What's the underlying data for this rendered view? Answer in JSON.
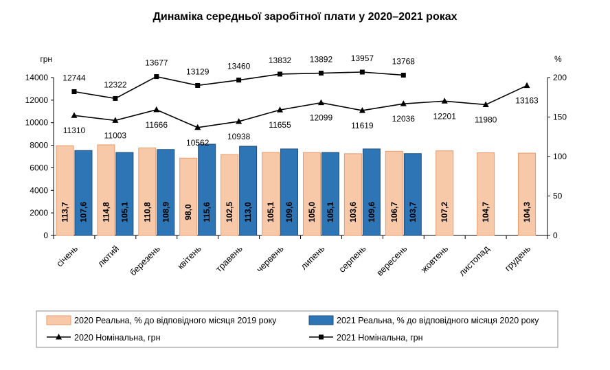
{
  "chart_data": {
    "type": "bar+line",
    "title": "Динаміка середньої заробітної плати у 2020–2021 роках",
    "left_axis": {
      "unit": "грн",
      "ylim": [
        0,
        14000
      ],
      "ticks": [
        "0",
        "2000",
        "4000",
        "6000",
        "8000",
        "10000",
        "12000",
        "14000"
      ]
    },
    "right_axis": {
      "unit": "%",
      "ylim": [
        0,
        200
      ],
      "ticks": [
        "0",
        "50",
        "100",
        "150",
        "200"
      ]
    },
    "categories": [
      "січень",
      "лютий",
      "березень",
      "квітень",
      "травень",
      "червень",
      "липень",
      "серпень",
      "вересень",
      "жовтень",
      "листопад",
      "грудень"
    ],
    "series": [
      {
        "name": "2020 Реальна, % до відповідного місяця 2019 року",
        "kind": "bar",
        "axis": "right",
        "color": "#F8C9A9",
        "stroke": "#E89A6A",
        "values": [
          113.7,
          114.8,
          110.8,
          98.0,
          102.5,
          105.1,
          105.0,
          103.6,
          106.7,
          107.2,
          104.7,
          104.3
        ],
        "labels": [
          "113,7",
          "114,8",
          "110,8",
          "98,0",
          "102,5",
          "105,1",
          "105,0",
          "103,6",
          "106,7",
          "107,2",
          "104,7",
          "104,3"
        ]
      },
      {
        "name": "2021 Реальна, % до відповідного місяця 2020 року",
        "kind": "bar",
        "axis": "right",
        "color": "#2E75B6",
        "stroke": "#1F4E79",
        "values": [
          107.6,
          105.1,
          108.9,
          115.6,
          113.0,
          109.6,
          105.1,
          109.6,
          103.7,
          null,
          null,
          null
        ],
        "labels": [
          "107,6",
          "105,1",
          "108,9",
          "115,6",
          "113,0",
          "109,6",
          "105,1",
          "109,6",
          "103,7",
          null,
          null,
          null
        ]
      },
      {
        "name": "2020 Номінальна, грн",
        "kind": "line",
        "axis": "right",
        "marker": "triangle",
        "color": "#000000",
        "values": [
          11310,
          11003,
          11666,
          10562,
          10938,
          11655,
          12099,
          11619,
          12036,
          12201,
          11980,
          13163
        ],
        "labels": [
          "11310",
          "11003",
          "11666",
          "10562",
          "10938",
          "11655",
          "12099",
          "11619",
          "12036",
          "12201",
          "11980",
          "13163"
        ]
      },
      {
        "name": "2021 Номінальна, грн",
        "kind": "line",
        "axis": "right",
        "marker": "square",
        "color": "#000000",
        "values": [
          12744,
          12322,
          13677,
          13129,
          13460,
          13832,
          13892,
          13957,
          13768,
          null,
          null,
          null
        ],
        "labels": [
          "12744",
          "12322",
          "13677",
          "13129",
          "13460",
          "13832",
          "13892",
          "13957",
          "13768",
          null,
          null,
          null
        ]
      }
    ],
    "legend": {
      "position": "bottom"
    }
  }
}
